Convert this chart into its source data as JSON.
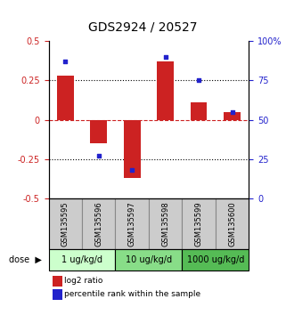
{
  "title": "GDS2924 / 20527",
  "samples": [
    "GSM135595",
    "GSM135596",
    "GSM135597",
    "GSM135598",
    "GSM135599",
    "GSM135600"
  ],
  "log2_ratio": [
    0.28,
    -0.15,
    -0.37,
    0.37,
    0.11,
    0.05
  ],
  "percentile_rank": [
    87,
    27,
    18,
    90,
    75,
    55
  ],
  "ylim_left": [
    -0.5,
    0.5
  ],
  "ylim_right": [
    0,
    100
  ],
  "yticks_left": [
    -0.5,
    -0.25,
    0,
    0.25,
    0.5
  ],
  "yticks_right": [
    0,
    25,
    50,
    75,
    100
  ],
  "ytick_labels_right": [
    "0",
    "25",
    "50",
    "75",
    "100%"
  ],
  "hlines_dotted": [
    0.25,
    -0.25
  ],
  "hline_dashed": 0,
  "bar_color": "#cc2222",
  "dot_color": "#2222cc",
  "bar_width": 0.5,
  "dose_groups": [
    {
      "label": "1 ug/kg/d",
      "start": 0,
      "end": 1,
      "color": "#ccffcc"
    },
    {
      "label": "10 ug/kg/d",
      "start": 2,
      "end": 3,
      "color": "#88dd88"
    },
    {
      "label": "1000 ug/kg/d",
      "start": 4,
      "end": 5,
      "color": "#55bb55"
    }
  ],
  "legend_bar_label": "log2 ratio",
  "legend_dot_label": "percentile rank within the sample",
  "title_fontsize": 10,
  "tick_fontsize": 7,
  "label_fontsize": 6,
  "axis_color_left": "#cc2222",
  "axis_color_right": "#2222cc",
  "sample_box_color": "#cccccc",
  "sample_box_edge": "#888888"
}
